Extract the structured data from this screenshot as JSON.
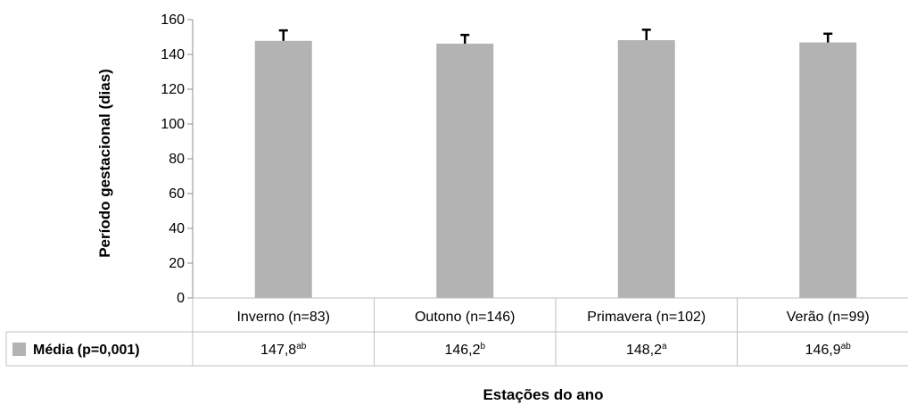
{
  "chart_data": {
    "type": "bar",
    "categories": [
      "Inverno (n=83)",
      "Outono (n=146)",
      "Primavera (n=102)",
      "Verão (n=99)"
    ],
    "series": [
      {
        "name": "Média (p=0,001)",
        "values": [
          147.8,
          146.2,
          148.2,
          146.9
        ],
        "error_upper": [
          6,
          5,
          6,
          5
        ],
        "color": "#b3b3b3"
      }
    ],
    "data_labels": [
      {
        "value": "147,8",
        "sup": "ab"
      },
      {
        "value": "146,2",
        "sup": "b"
      },
      {
        "value": "148,2",
        "sup": "a"
      },
      {
        "value": "146,9",
        "sup": "ab"
      }
    ],
    "xlabel": "Estações do ano",
    "ylabel": "Período gestacional (dias)",
    "ylim": [
      0,
      160
    ],
    "yticks": [
      "0",
      "20",
      "40",
      "60",
      "80",
      "100",
      "120",
      "140",
      "160"
    ],
    "grid": false,
    "legend_placement": "data-table-left"
  }
}
